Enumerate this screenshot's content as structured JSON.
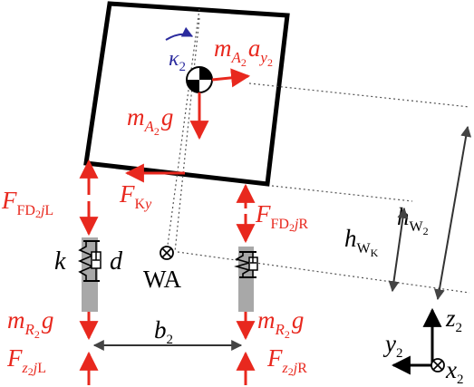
{
  "colors": {
    "force": "#e8281e",
    "body": "#000000",
    "spring_fill": "#a8a8a8",
    "angle": "#2b2b9e",
    "dotted": "#555555"
  },
  "labels": {
    "kappa": "κ",
    "kappa_sub": "2",
    "m_a2_ay2": {
      "m": "m",
      "A": "A",
      "two": "2",
      "a": "a",
      "y": "y",
      "ytwo": "2"
    },
    "m_a2_g": {
      "m": "m",
      "A": "A",
      "two": "2",
      "g": "g"
    },
    "f_fd_l": {
      "F": "F",
      "FD": "FD",
      "two": "2",
      "j": "j",
      "L": "L"
    },
    "f_fd_r": {
      "F": "F",
      "FD": "FD",
      "two": "2",
      "j": "j",
      "R": "R"
    },
    "f_ky": {
      "F": "F",
      "K": "K",
      "y": "y"
    },
    "h_w2": {
      "h": "h",
      "W": "W",
      "two": "2"
    },
    "h_wk": {
      "h": "h",
      "W": "W",
      "K": "K"
    },
    "k": "k",
    "d": "d",
    "wa": "WA",
    "m_r2_g_left": {
      "m": "m",
      "R": "R",
      "two": "2",
      "g": "g"
    },
    "m_r2_g_right": {
      "m": "m",
      "R": "R",
      "two": "2",
      "g": "g"
    },
    "b2": {
      "b": "b",
      "two": "2"
    },
    "f_z_l": {
      "F": "F",
      "z": "z",
      "two": "2",
      "j": "j",
      "L": "L"
    },
    "f_z_r": {
      "F": "F",
      "z": "z",
      "two": "2",
      "j": "j",
      "R": "R"
    },
    "axis_z2": {
      "z": "z",
      "two": "2"
    },
    "axis_y2": {
      "y": "y",
      "two": "2"
    },
    "axis_x2": {
      "x": "x",
      "two": "2"
    }
  }
}
